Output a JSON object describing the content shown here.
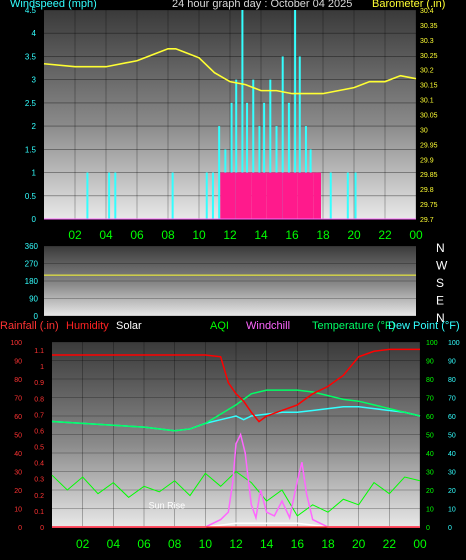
{
  "header": {
    "title": "24 hour graph day : October 04 2025",
    "left_label": "Windspeed (mph)",
    "right_label": "Barometer (.in)"
  },
  "bottom_header": {
    "rainfall": "Rainfall (.in)",
    "humidity": "Humidity",
    "solar": "Solar",
    "aqi": "AQI",
    "windchill": "Windchill",
    "temperature": "Temperature (°F)",
    "dewpoint": "Dew Point (°F)"
  },
  "colors": {
    "barometer": "#ffff33",
    "windspeed": "#33ffff",
    "windbar_fill": "#ff1a8c",
    "humidity": "#ff0000",
    "solar": "#ffffff",
    "aqi": "#00ff00",
    "windchill": "#ff66ff",
    "temperature": "#00ff66",
    "dewpoint": "#33ffff",
    "rainfall": "#ff3333"
  },
  "chart_data": [
    {
      "id": "wind_baro",
      "type": "line",
      "xlabel": "",
      "ylabel": "Windspeed (mph)",
      "y2label": "Barometer (.in)",
      "x_ticks": [
        "02",
        "04",
        "06",
        "08",
        "10",
        "12",
        "14",
        "16",
        "18",
        "20",
        "22",
        "00"
      ],
      "ylim": [
        0,
        4.5
      ],
      "y_ticks": [
        "0",
        "0.5",
        "1",
        "1.5",
        "2",
        "2.5",
        "3",
        "3.5",
        "4",
        "4.5"
      ],
      "y2lim": [
        29.7,
        30.4
      ],
      "y2_ticks": [
        "29.7",
        "29.75",
        "29.8",
        "29.85",
        "29.9",
        "29.95",
        "30",
        "30.05",
        "30.1",
        "30.15",
        "30.2",
        "30.25",
        "30.3",
        "30.35",
        "30.4"
      ],
      "series": [
        {
          "name": "Barometer (.in)",
          "axis": "right",
          "x": [
            0,
            2,
            4,
            6,
            7,
            8,
            8.5,
            9,
            10,
            11,
            12,
            13,
            14,
            15,
            16,
            17,
            18,
            19,
            20,
            21,
            22,
            23,
            24
          ],
          "y": [
            30.22,
            30.21,
            30.21,
            30.23,
            30.25,
            30.27,
            30.27,
            30.26,
            30.24,
            30.19,
            30.16,
            30.15,
            30.13,
            30.13,
            30.12,
            30.12,
            30.12,
            30.13,
            30.14,
            30.16,
            30.16,
            30.18,
            30.17
          ]
        },
        {
          "name": "Windspeed (mph)",
          "axis": "left",
          "style": "bars",
          "x": [
            2.8,
            4.2,
            4.6,
            8.3,
            10.5,
            10.9,
            11.3,
            11.7,
            12.1,
            12.4,
            12.8,
            13.1,
            13.5,
            13.9,
            14.2,
            14.6,
            15.0,
            15.4,
            15.8,
            16.2,
            16.5,
            16.9,
            17.2,
            17.6,
            18.5,
            19.6,
            20.1
          ],
          "y": [
            1.0,
            1.0,
            1.0,
            1.0,
            1.0,
            1.0,
            2.0,
            1.5,
            2.5,
            3.0,
            4.5,
            2.5,
            3.0,
            2.0,
            2.5,
            3.0,
            2.0,
            3.5,
            2.5,
            4.5,
            3.5,
            2.0,
            1.5,
            1.0,
            1.0,
            1.0,
            1.0
          ]
        },
        {
          "name": "Wind gust band",
          "axis": "left",
          "style": "fill",
          "x": [
            11.5,
            12.0,
            12.5,
            13.0,
            13.5,
            14.0,
            14.5,
            15.0,
            15.5,
            16.0,
            16.5,
            17.0,
            17.5
          ],
          "y": [
            1.0,
            1.0,
            1.0,
            1.0,
            1.0,
            1.0,
            1.0,
            1.0,
            1.0,
            1.0,
            1.0,
            1.0,
            1.0
          ]
        }
      ]
    },
    {
      "id": "wind_direction",
      "type": "line",
      "ylim": [
        0,
        360
      ],
      "y_ticks": [
        "0",
        "90",
        "180",
        "270",
        "360"
      ],
      "directions": [
        "N",
        "W",
        "S",
        "E",
        "N"
      ],
      "series": [
        {
          "name": "Wind direction",
          "x": [
            0,
            24
          ],
          "y": [
            210,
            210
          ]
        }
      ]
    },
    {
      "id": "temp_hum",
      "type": "line",
      "x_ticks": [
        "02",
        "04",
        "06",
        "08",
        "10",
        "12",
        "14",
        "16",
        "18",
        "20",
        "22",
        "00"
      ],
      "ylim_left": [
        0,
        100
      ],
      "y_ticks_left": [
        "0",
        "10",
        "20",
        "30",
        "40",
        "50",
        "60",
        "70",
        "80",
        "90",
        "100"
      ],
      "y_ticks_rain": [
        "0",
        "0.1",
        "0.2",
        "0.3",
        "0.4",
        "0.5",
        "0.6",
        "0.7",
        "0.8",
        "0.9",
        "1",
        "1.1"
      ],
      "ylim_right": [
        0,
        100
      ],
      "y_ticks_right": [
        "0",
        "10",
        "20",
        "30",
        "40",
        "50",
        "60",
        "70",
        "80",
        "90",
        "100"
      ],
      "annotation": "Sun Rise",
      "series": [
        {
          "name": "Humidity",
          "axis": "left",
          "x": [
            0,
            4,
            8,
            10,
            11,
            11.5,
            12,
            12.5,
            13,
            13.5,
            14,
            15,
            16,
            17,
            18,
            19,
            20,
            21,
            22,
            23,
            24
          ],
          "y": [
            93,
            93,
            93,
            93,
            92,
            78,
            72,
            68,
            62,
            57,
            60,
            63,
            66,
            72,
            76,
            82,
            92,
            95,
            96,
            96,
            96
          ]
        },
        {
          "name": "Temperature (°F)",
          "axis": "right",
          "x": [
            0,
            2,
            4,
            6,
            8,
            9,
            10,
            11,
            12,
            13,
            14,
            15,
            16,
            17,
            18,
            19,
            20,
            21,
            22,
            23,
            24
          ],
          "y": [
            57,
            56,
            55,
            54,
            52,
            53,
            56,
            61,
            66,
            72,
            74,
            74,
            74,
            73,
            71,
            69,
            68,
            66,
            64,
            62,
            60
          ]
        },
        {
          "name": "Dew Point (°F)",
          "axis": "right",
          "x": [
            0,
            2,
            4,
            6,
            8,
            9,
            10,
            11,
            12,
            12.5,
            13,
            14,
            15,
            16,
            17,
            18,
            19,
            20,
            21,
            22,
            23,
            24
          ],
          "y": [
            57,
            56,
            55,
            54,
            52,
            53,
            56,
            58,
            60,
            58,
            60,
            61,
            62,
            62,
            63,
            64,
            65,
            65,
            64,
            63,
            62,
            60
          ]
        },
        {
          "name": "AQI",
          "axis": "right",
          "x": [
            0,
            1,
            2,
            3,
            4,
            5,
            6,
            7,
            8,
            9,
            10,
            11,
            12,
            13,
            14,
            15,
            16,
            17,
            18,
            19,
            20,
            21,
            22,
            23,
            24
          ],
          "y": [
            28,
            20,
            27,
            18,
            24,
            16,
            22,
            19,
            25,
            17,
            29,
            22,
            30,
            24,
            14,
            20,
            6,
            12,
            8,
            15,
            12,
            24,
            18,
            27,
            25
          ]
        },
        {
          "name": "Windchill",
          "axis": "right",
          "x": [
            0,
            6,
            10,
            10.5,
            11,
            11.5,
            11.8,
            12,
            12.3,
            12.6,
            13,
            13.3,
            13.6,
            14,
            14.5,
            15,
            15.5,
            16,
            16.3,
            16.6,
            17,
            17.5,
            18,
            20,
            24
          ],
          "y": [
            0,
            0,
            0,
            2,
            4,
            8,
            25,
            45,
            50,
            40,
            12,
            5,
            20,
            8,
            6,
            14,
            5,
            25,
            35,
            18,
            4,
            2,
            0,
            0,
            0
          ]
        },
        {
          "name": "Solar",
          "axis": "right",
          "x": [
            0,
            10,
            11,
            12,
            13,
            14,
            15,
            16,
            17,
            18,
            24
          ],
          "y": [
            0,
            0,
            1,
            2,
            2,
            2,
            2,
            2,
            1,
            0,
            0
          ]
        },
        {
          "name": "Rainfall (.in)",
          "axis": "left",
          "x": [
            0,
            24
          ],
          "y": [
            0,
            0
          ]
        }
      ]
    }
  ]
}
